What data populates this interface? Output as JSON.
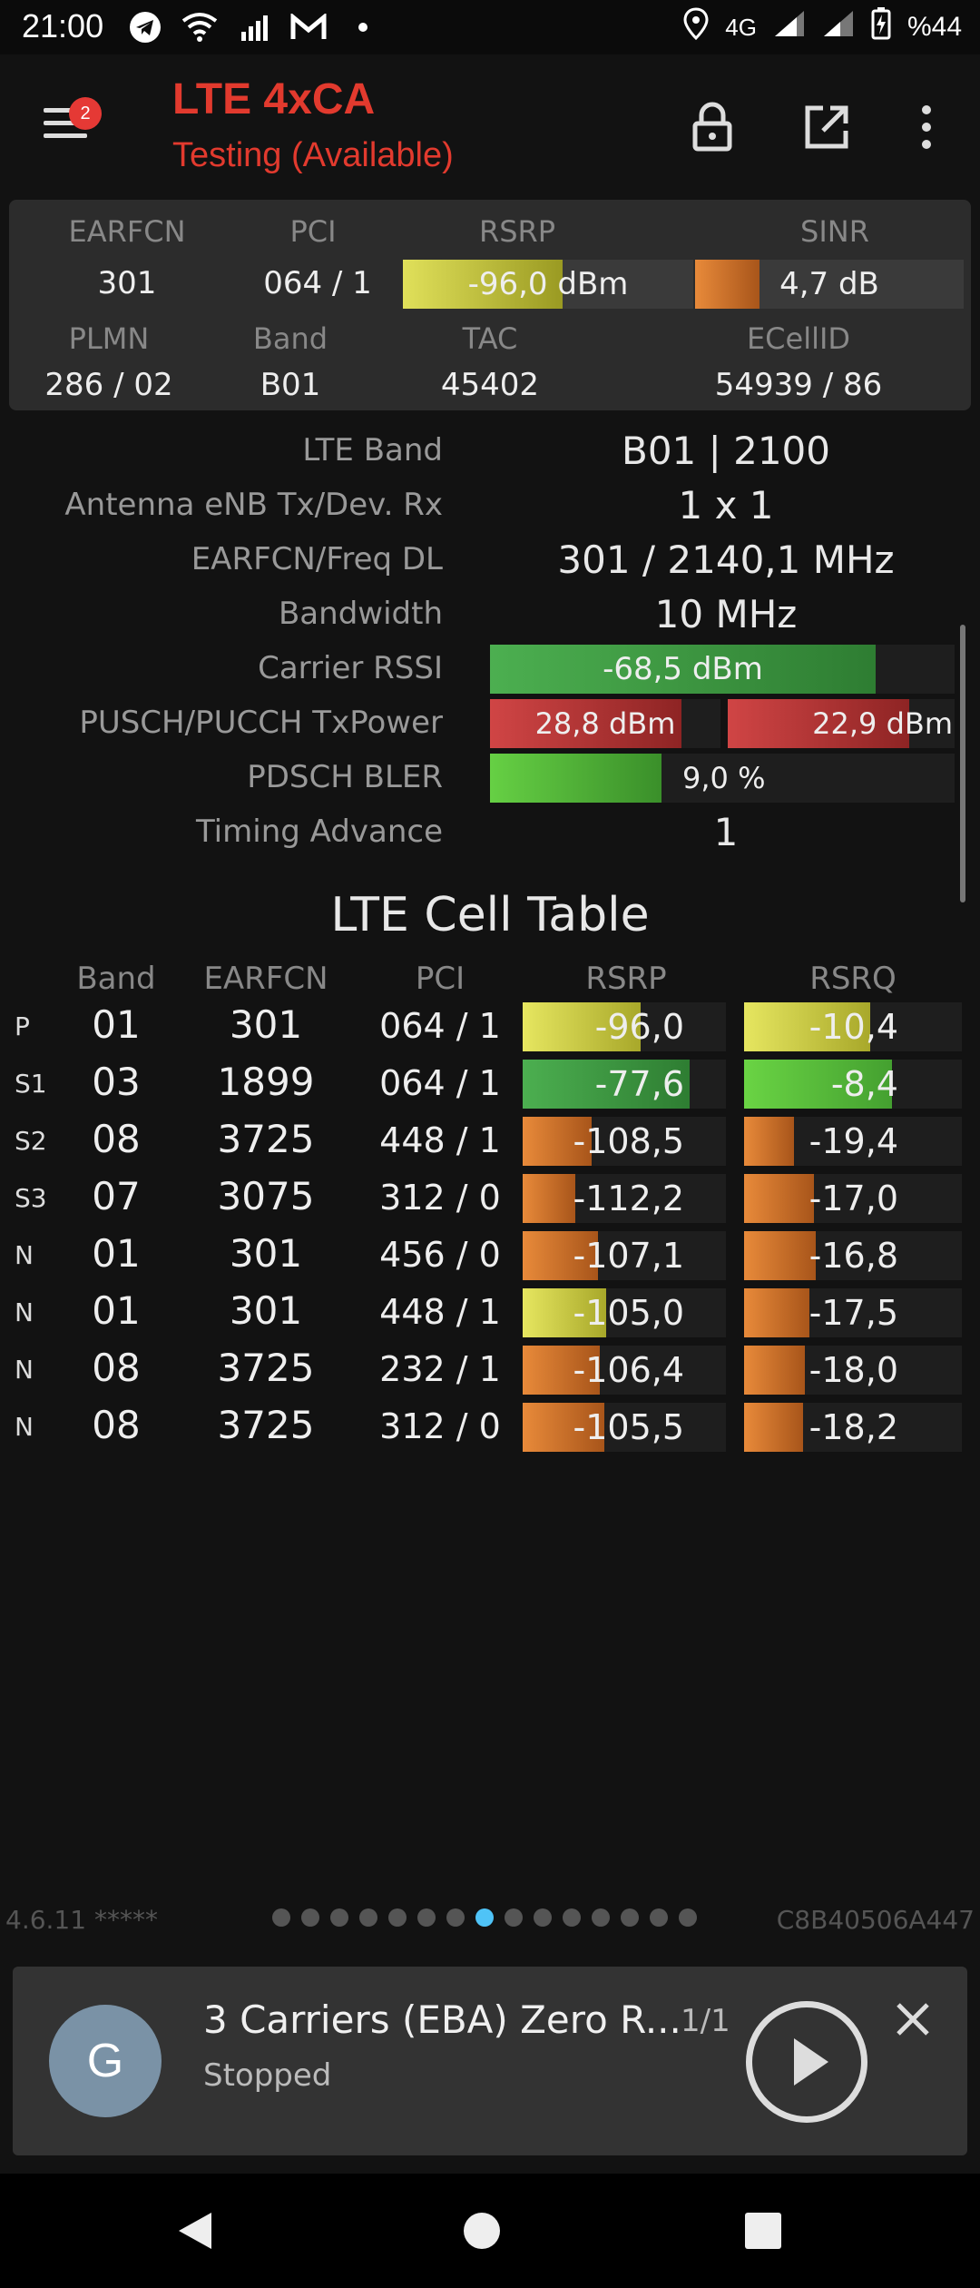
{
  "status_bar": {
    "time": "21:00",
    "left_icons": [
      "telegram-icon",
      "wifi-icon",
      "signal-r-icon",
      "gmail-icon",
      "dot-icon"
    ],
    "network": "4G",
    "battery": "%44"
  },
  "app_bar": {
    "title": "LTE 4xCA",
    "subtitle": "Testing (Available)",
    "badge_count": "2",
    "icons": [
      "menu-icon",
      "lock-icon",
      "open-external-icon",
      "more-vert-icon"
    ]
  },
  "summary": {
    "labels": {
      "earfcn": "EARFCN",
      "pci": "PCI",
      "rsrp": "RSRP",
      "sinr": "SINR",
      "plmn": "PLMN",
      "band": "Band",
      "tac": "TAC",
      "ecellid": "ECellID"
    },
    "values": {
      "earfcn": "301",
      "pci": "064 / 1",
      "rsrp": "-96,0 dBm",
      "sinr": "4,7 dB",
      "plmn": "286 / 02",
      "band": "B01",
      "tac": "45402",
      "ecellid": "54939 / 86"
    },
    "rsrp_fill": 0.55,
    "sinr_fill": 0.24
  },
  "details": [
    {
      "label": "LTE Band",
      "value": "B01 | 2100"
    },
    {
      "label": "Antenna eNB Tx/Dev. Rx",
      "value": "1 x 1"
    },
    {
      "label": "EARFCN/Freq DL",
      "value": "301 / 2140,1 MHz"
    },
    {
      "label": "Bandwidth",
      "value": "10 MHz"
    },
    {
      "label": "Carrier RSSI",
      "value": "-68,5 dBm"
    },
    {
      "label": "PUSCH/PUCCH TxPower",
      "value": ""
    },
    {
      "label": "PDSCH BLER",
      "value": ""
    },
    {
      "label": "Timing Advance",
      "value": "1"
    }
  ],
  "detail_bars": {
    "rssi_fill": 0.83,
    "pusch": "28,8 dBm",
    "pusch_fill": 0.83,
    "pucch": "22,9 dBm",
    "pucch_fill": 0.8,
    "bler": "9,0 %",
    "bler_fill": 0.37
  },
  "cell_table": {
    "title": "LTE Cell Table",
    "headers": [
      "Band",
      "EARFCN",
      "PCI",
      "RSRP",
      "RSRQ"
    ],
    "rows": [
      {
        "type": "P",
        "band": "01",
        "earfcn": "301",
        "pci": "064 / 1",
        "rsrp": "-96,0",
        "rsrq": "-10,4",
        "rsrp_fill": 0.58,
        "rsrq_fill": 0.58,
        "rsrp_color": "yellow",
        "rsrq_color": "yellow"
      },
      {
        "type": "S1",
        "band": "03",
        "earfcn": "1899",
        "pci": "064 / 1",
        "rsrp": "-77,6",
        "rsrq": "-8,4",
        "rsrp_fill": 0.82,
        "rsrq_fill": 0.68,
        "rsrp_color": "green",
        "rsrq_color": "lightgreen"
      },
      {
        "type": "S2",
        "band": "08",
        "earfcn": "3725",
        "pci": "448 / 1",
        "rsrp": "-108,5",
        "rsrq": "-19,4",
        "rsrp_fill": 0.34,
        "rsrq_fill": 0.23,
        "rsrp_color": "orange",
        "rsrq_color": "orange"
      },
      {
        "type": "S3",
        "band": "07",
        "earfcn": "3075",
        "pci": "312 / 0",
        "rsrp": "-112,2",
        "rsrq": "-17,0",
        "rsrp_fill": 0.26,
        "rsrq_fill": 0.32,
        "rsrp_color": "orange",
        "rsrq_color": "orange"
      },
      {
        "type": "N",
        "band": "01",
        "earfcn": "301",
        "pci": "456 / 0",
        "rsrp": "-107,1",
        "rsrq": "-16,8",
        "rsrp_fill": 0.37,
        "rsrq_fill": 0.33,
        "rsrp_color": "orange",
        "rsrq_color": "orange"
      },
      {
        "type": "N",
        "band": "01",
        "earfcn": "301",
        "pci": "448 / 1",
        "rsrp": "-105,0",
        "rsrq": "-17,5",
        "rsrp_fill": 0.41,
        "rsrq_fill": 0.3,
        "rsrp_color": "yellow",
        "rsrq_color": "orange"
      },
      {
        "type": "N",
        "band": "08",
        "earfcn": "3725",
        "pci": "232 / 1",
        "rsrp": "-106,4",
        "rsrq": "-18,0",
        "rsrp_fill": 0.38,
        "rsrq_fill": 0.28,
        "rsrp_color": "orange",
        "rsrq_color": "orange"
      },
      {
        "type": "N",
        "band": "08",
        "earfcn": "3725",
        "pci": "312 / 0",
        "rsrp": "-105,5",
        "rsrq": "-18,2",
        "rsrp_fill": 0.4,
        "rsrq_fill": 0.27,
        "rsrp_color": "orange",
        "rsrq_color": "orange"
      }
    ]
  },
  "footer": {
    "version": "4.6.11 *****",
    "device_id": "C8B40506A447",
    "page_count": 15,
    "active_page": 7
  },
  "player": {
    "avatar_letter": "G",
    "title": "3 Carriers (EBA) Zero R...",
    "count": "1/1",
    "status": "Stopped"
  },
  "colors": {
    "accent_red": "#e23a2e",
    "bar_yellow": "#c8c83a",
    "bar_green": "#3c9a40",
    "bar_lightgreen": "#5cc83c",
    "bar_orange": "#d9772e",
    "bar_red": "#c0393b",
    "dot_active": "#4fc3f7"
  }
}
